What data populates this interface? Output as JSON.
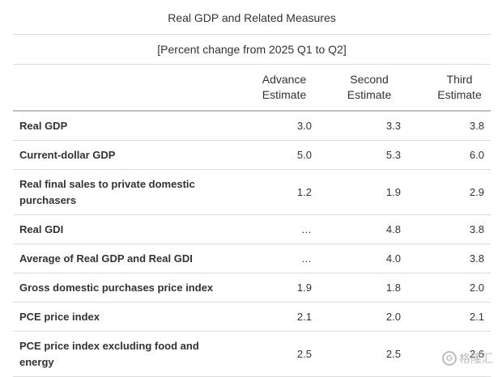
{
  "title": "Real GDP and Related Measures",
  "subtitle": "[Percent change from 2025 Q1 to Q2]",
  "columns": [
    {
      "line1": "",
      "line2": ""
    },
    {
      "line1": "Advance",
      "line2": "Estimate"
    },
    {
      "line1": "Second",
      "line2": "Estimate"
    },
    {
      "line1": "Third",
      "line2": "Estimate"
    }
  ],
  "rows": [
    {
      "label": "Real GDP",
      "advance": "3.0",
      "second": "3.3",
      "third": "3.8"
    },
    {
      "label": "Current-dollar GDP",
      "advance": "5.0",
      "second": "5.3",
      "third": "6.0"
    },
    {
      "label": "Real final sales to private domestic purchasers",
      "advance": "1.2",
      "second": "1.9",
      "third": "2.9"
    },
    {
      "label": "Real GDI",
      "advance": "…",
      "second": "4.8",
      "third": "3.8"
    },
    {
      "label": "Average of Real GDP and Real GDI",
      "advance": "…",
      "second": "4.0",
      "third": "3.8"
    },
    {
      "label": "Gross domestic purchases price index",
      "advance": "1.9",
      "second": "1.8",
      "third": "2.0"
    },
    {
      "label": "PCE price index",
      "advance": "2.1",
      "second": "2.0",
      "third": "2.1"
    },
    {
      "label": "PCE price index excluding food and energy",
      "advance": "2.5",
      "second": "2.5",
      "third": "2.6"
    }
  ],
  "watermark": {
    "logo_letter": "G",
    "text": "格隆汇",
    "icon": "gelonghui-logo-icon"
  }
}
